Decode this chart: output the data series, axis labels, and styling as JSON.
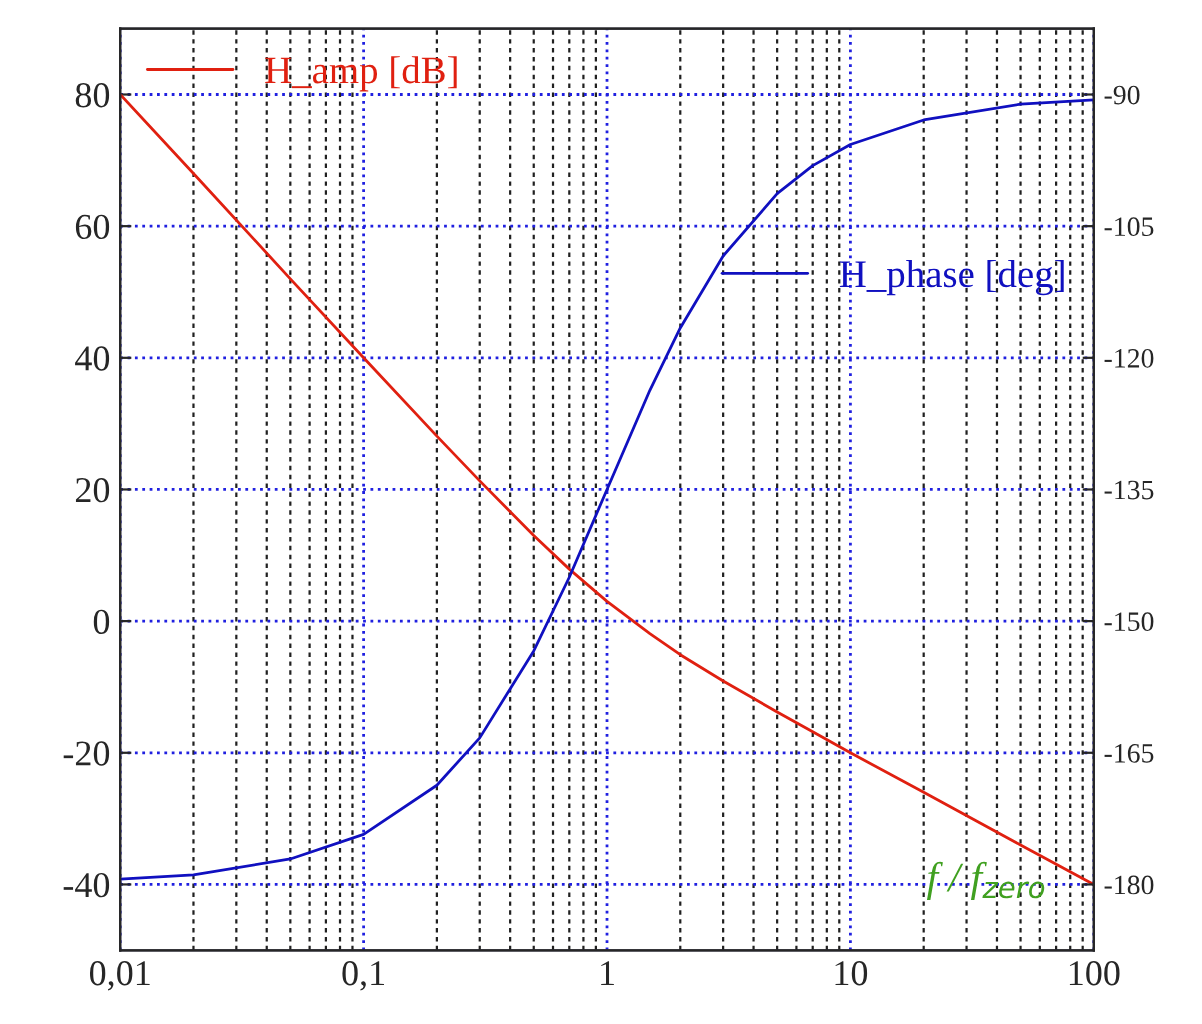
{
  "chart_data": {
    "type": "line",
    "x": [
      0.01,
      0.02,
      0.05,
      0.1,
      0.2,
      0.3,
      0.5,
      0.7,
      1,
      1.5,
      2,
      3,
      5,
      7,
      10,
      20,
      50,
      100
    ],
    "series": [
      {
        "name": "H_amp [dB]",
        "color": "#e02010",
        "values": [
          80.0,
          68.0,
          52.0,
          40.0,
          28.1,
          21.3,
          13.0,
          7.9,
          3.0,
          -1.9,
          -5.1,
          -9.1,
          -13.8,
          -16.8,
          -20.0,
          -26.0,
          -34.0,
          -40.0
        ]
      },
      {
        "name": "H_phase [deg]",
        "color": "#1010c0",
        "axis": "y2",
        "values": [
          -179.4,
          -178.9,
          -177.1,
          -174.3,
          -168.7,
          -163.3,
          -153.4,
          -145.0,
          -135.0,
          -123.7,
          -116.6,
          -108.4,
          -101.3,
          -98.1,
          -95.7,
          -92.9,
          -91.1,
          -90.6
        ]
      }
    ],
    "log": "x",
    "xlim": [
      0.01,
      100
    ],
    "xticks": [
      {
        "value": 0.01,
        "label": "0,01"
      },
      {
        "value": 0.1,
        "label": "0,1"
      },
      1,
      10,
      100
    ],
    "ylim": [
      -50,
      90
    ],
    "yticks": [
      -40,
      -20,
      0,
      20,
      40,
      60,
      80
    ],
    "y2lim": [
      -187.5,
      -82.5
    ],
    "y2ticks": [
      -180,
      -165,
      -150,
      -135,
      -120,
      -105,
      -90
    ],
    "grid": true,
    "legend": "top left",
    "marker": "none",
    "line_style": "solid",
    "annotations": [
      "f / f$_{zero}$"
    ]
  }
}
